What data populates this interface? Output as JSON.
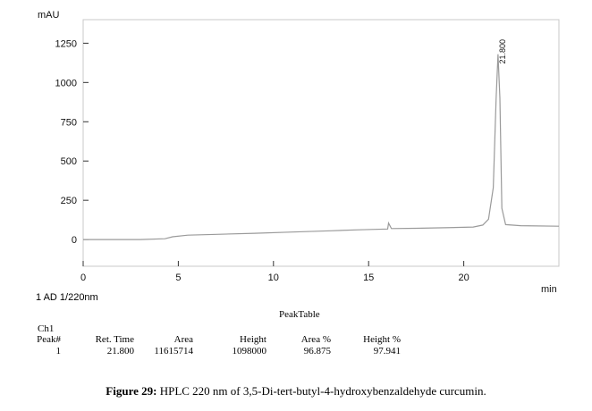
{
  "chart_data": {
    "type": "line",
    "ylabel": "mAU",
    "xlabel": "min",
    "xlim": [
      0,
      25
    ],
    "ylim": [
      -170,
      1400
    ],
    "x_ticks": [
      0,
      5,
      10,
      15,
      20
    ],
    "y_ticks": [
      0,
      250,
      500,
      750,
      1000,
      1250
    ],
    "grid": false,
    "series": [
      {
        "points": [
          [
            0,
            0
          ],
          [
            3,
            0
          ],
          [
            4.3,
            5
          ],
          [
            4.7,
            18
          ],
          [
            5.5,
            28
          ],
          [
            7,
            33
          ],
          [
            9,
            40
          ],
          [
            11,
            48
          ],
          [
            13,
            56
          ],
          [
            14.5,
            62
          ],
          [
            16,
            67
          ],
          [
            16.05,
            105
          ],
          [
            16.2,
            70
          ],
          [
            17.5,
            72
          ],
          [
            19,
            75
          ],
          [
            20.5,
            80
          ],
          [
            21,
            92
          ],
          [
            21.3,
            130
          ],
          [
            21.55,
            330
          ],
          [
            21.7,
            900
          ],
          [
            21.8,
            1180
          ],
          [
            21.9,
            900
          ],
          [
            22.0,
            200
          ],
          [
            22.2,
            95
          ],
          [
            23,
            88
          ],
          [
            25,
            85
          ]
        ]
      }
    ],
    "annotations": [
      {
        "x": 21.8,
        "text": "21.800"
      }
    ]
  },
  "channel_label": "1 AD 1/220nm",
  "peak_table": {
    "title": "PeakTable",
    "channel": "Ch1",
    "headers": [
      "Peak#",
      "Ret. Time",
      "Area",
      "Height",
      "Area %",
      "Height %"
    ],
    "rows": [
      [
        "1",
        "21.800",
        "11615714",
        "1098000",
        "96.875",
        "97.941"
      ]
    ]
  },
  "caption": {
    "label": "Figure 29:",
    "text": " HPLC 220 nm of 3,5-Di-tert-butyl-4-hydroxybenzaldehyde curcumin."
  }
}
